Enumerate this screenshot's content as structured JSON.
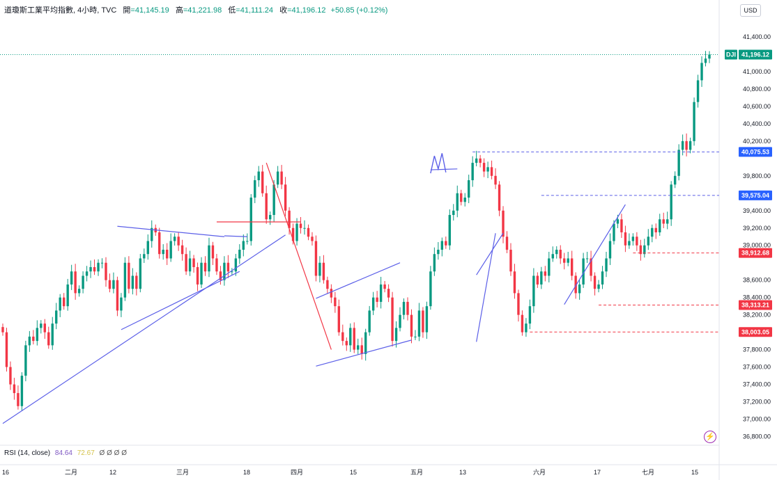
{
  "header": {
    "symbol": "道瓊斯工業平均指數, 4小時, TVC",
    "open_label": "開",
    "open_value": "=41,145.19",
    "high_label": "高",
    "high_value": "=41,221.98",
    "low_label": "低",
    "low_value": "=41,111.24",
    "close_label": "收",
    "close_value": "=41,196.12",
    "change": "+50.85 (+0.12%)"
  },
  "currency": "USD",
  "rsi": {
    "label": "RSI (14, close)",
    "value1": "84.64",
    "value2": "72.67",
    "extras": "Ø Ø Ø Ø"
  },
  "colors": {
    "up": "#089981",
    "down": "#f23645",
    "drawing": "#5b5fe8",
    "red_line": "#f23645",
    "price_tag": "#089981",
    "blue_tag": "#2962ff"
  },
  "chart_data": {
    "type": "candlestick",
    "symbol_tag": "DJI",
    "last_price": 41196.12,
    "last_price_label": "41,196.12",
    "ylim": [
      36700,
      41600
    ],
    "y_ticks": [
      {
        "v": 41400,
        "label": "41,400.00"
      },
      {
        "v": 41000,
        "label": "41,000.00"
      },
      {
        "v": 40800,
        "label": "40,800.00"
      },
      {
        "v": 40600,
        "label": "40,600.00"
      },
      {
        "v": 40400,
        "label": "40,400.00"
      },
      {
        "v": 40200,
        "label": "40,200.00"
      },
      {
        "v": 39800,
        "label": "39,800.00"
      },
      {
        "v": 39400,
        "label": "39,400.00"
      },
      {
        "v": 39200,
        "label": "39,200.00"
      },
      {
        "v": 39000,
        "label": "39,000.00"
      },
      {
        "v": 38600,
        "label": "38,600.00"
      },
      {
        "v": 38400,
        "label": "38,400.00"
      },
      {
        "v": 38200,
        "label": "38,200.00"
      },
      {
        "v": 37800,
        "label": "37,800.00"
      },
      {
        "v": 37600,
        "label": "37,600.00"
      },
      {
        "v": 37400,
        "label": "37,400.00"
      },
      {
        "v": 37200,
        "label": "37,200.00"
      },
      {
        "v": 37000,
        "label": "37,000.00"
      },
      {
        "v": 36800,
        "label": "36,800.00"
      }
    ],
    "x_ticks": [
      "16",
      "二月",
      "12",
      "三月",
      "18",
      "四月",
      "15",
      "五月",
      "13",
      "六月",
      "17",
      "七月",
      "15"
    ],
    "levels": [
      {
        "label": "40,075.53",
        "v": 40075.53,
        "color": "blue",
        "dashed_from_index": 123
      },
      {
        "label": "39,575.04",
        "v": 39575.04,
        "color": "blue",
        "dashed_from_index": 141
      },
      {
        "label": "38,912.68",
        "v": 38912.68,
        "color": "red",
        "dashed_from_index": 165
      },
      {
        "label": "38,313.21",
        "v": 38313.21,
        "color": "red",
        "dashed_from_index": 156
      },
      {
        "label": "38,003.05",
        "v": 38003.05,
        "color": "red",
        "dashed_from_index": 138
      }
    ],
    "closes": [
      38000,
      37600,
      37400,
      37300,
      37150,
      37500,
      37850,
      37950,
      37900,
      38050,
      38100,
      38000,
      37850,
      38100,
      38250,
      38400,
      38300,
      38550,
      38700,
      38450,
      38500,
      38650,
      38700,
      38750,
      38700,
      38800,
      38800,
      38600,
      38500,
      38600,
      38250,
      38400,
      38800,
      38500,
      38650,
      38500,
      38850,
      38900,
      39050,
      39200,
      39150,
      38900,
      38950,
      38850,
      39050,
      39100,
      39000,
      38900,
      38700,
      38850,
      38750,
      38550,
      38800,
      38700,
      39000,
      38850,
      38700,
      38600,
      38800,
      38700,
      38700,
      38850,
      38950,
      39050,
      39050,
      39550,
      39750,
      39850,
      39600,
      39300,
      39350,
      39700,
      39850,
      39700,
      39400,
      39200,
      39050,
      39250,
      39200,
      39200,
      39100,
      39050,
      38650,
      38800,
      38600,
      38500,
      38400,
      38300,
      38000,
      37900,
      37850,
      38050,
      37800,
      37850,
      37750,
      38000,
      38250,
      38400,
      38350,
      38550,
      38500,
      38400,
      37900,
      38050,
      38200,
      38350,
      38200,
      37950,
      37950,
      38250,
      38000,
      38300,
      38700,
      38900,
      38950,
      39050,
      39000,
      39350,
      39400,
      39600,
      39500,
      39550,
      39750,
      39950,
      40000,
      39950,
      39850,
      39900,
      39800,
      39700,
      39400,
      39100,
      38950,
      38700,
      38450,
      38200,
      38000,
      38100,
      38300,
      38650,
      38550,
      38700,
      38650,
      38850,
      38900,
      38950,
      38850,
      38800,
      38850,
      38650,
      38450,
      38550,
      38850,
      38850,
      38650,
      38500,
      38550,
      38700,
      38850,
      39050,
      39250,
      39300,
      39150,
      39000,
      39050,
      39100,
      39000,
      38900,
      39000,
      39100,
      39200,
      39150,
      39300,
      39250,
      39300,
      39700,
      39800,
      40100,
      40200,
      40100,
      40200,
      40650,
      40900,
      41100,
      41150,
      41196
    ]
  }
}
